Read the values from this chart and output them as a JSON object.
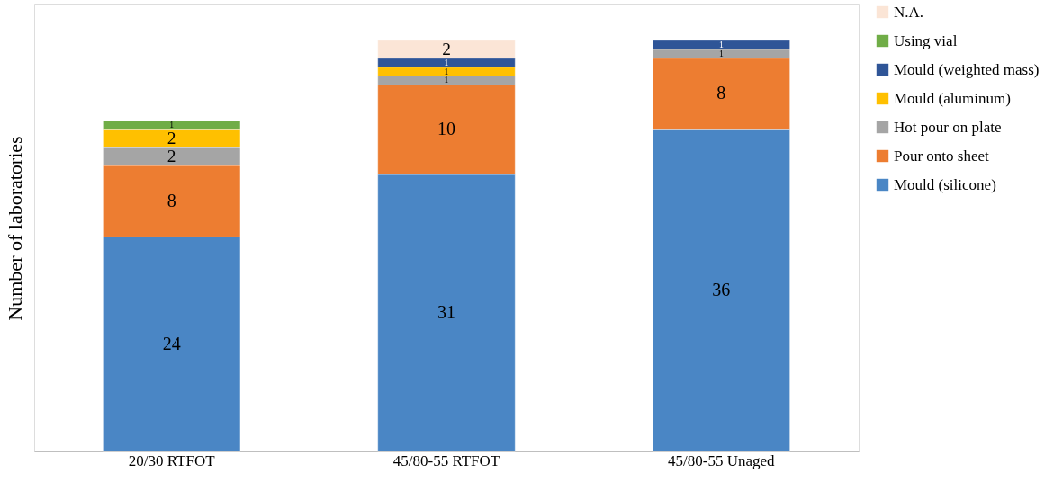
{
  "chart_data": {
    "type": "bar",
    "stacked": true,
    "ylabel": "Number of laboratories",
    "categories": [
      "20/30 RTFOT",
      "45/80-55 RTFOT",
      "45/80-55 Unaged"
    ],
    "series": [
      {
        "name": "Mould (silicone)",
        "color": "#4a86c5",
        "values": [
          24,
          31,
          36
        ]
      },
      {
        "name": "Pour onto sheet",
        "color": "#ed7d31",
        "values": [
          8,
          10,
          8
        ]
      },
      {
        "name": "Hot pour on plate",
        "color": "#a5a5a5",
        "values": [
          2,
          1,
          1
        ]
      },
      {
        "name": "Mould (aluminum)",
        "color": "#ffc000",
        "values": [
          2,
          1,
          null
        ]
      },
      {
        "name": "Mould (weighted mass)",
        "color": "#2f5597",
        "values": [
          null,
          1,
          1
        ]
      },
      {
        "name": "Using vial",
        "color": "#70ad47",
        "values": [
          1,
          null,
          null
        ]
      },
      {
        "name": "N.A.",
        "color": "#fbe5d6",
        "values": [
          null,
          2,
          null
        ]
      }
    ],
    "data_labels": true,
    "legend": "right",
    "grid": false,
    "tick_labels": "x"
  }
}
